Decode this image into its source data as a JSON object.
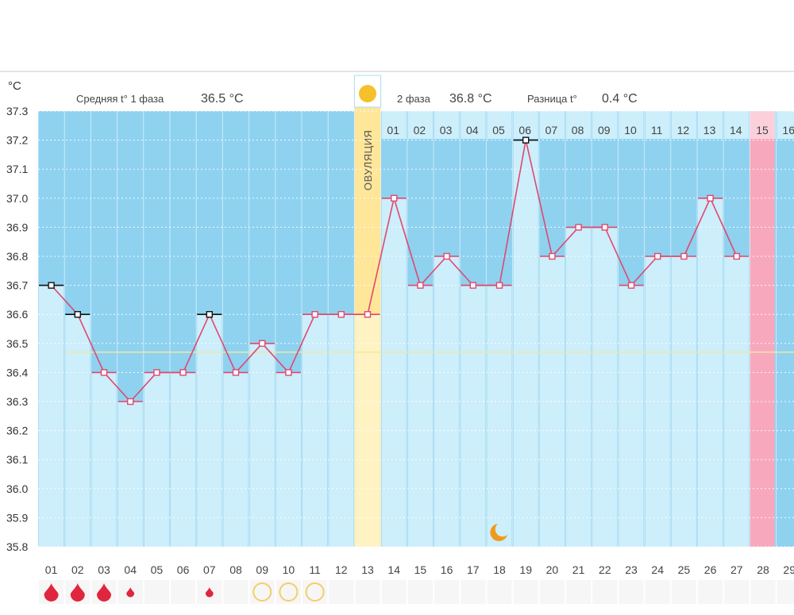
{
  "unit": "°C",
  "header": {
    "phase1_label": "Средняя t° 1 фаза",
    "phase1_value": "36.5 °C",
    "phase2_label": "2 фаза",
    "phase2_value": "36.8 °C",
    "diff_label": "Разница t°",
    "diff_value": "0.4 °C"
  },
  "ovulation_label": "ОВУЛЯЦИЯ",
  "colors": {
    "line": "#e0486f",
    "bg_blue": "#8ed2f0",
    "column_light": "#cdeefb",
    "ovulation": "#ffe699",
    "pink": "#f8a8bd",
    "baseline": "#f2e6a3"
  },
  "chart_data": {
    "type": "line",
    "y_ticks": [
      "37.3",
      "37.2",
      "37.1",
      "37.0",
      "36.9",
      "36.8",
      "36.7",
      "36.6",
      "36.5",
      "36.4",
      "36.3",
      "36.2",
      "36.1",
      "36.0",
      "35.9",
      "35.8"
    ],
    "ylim": [
      35.8,
      37.3
    ],
    "x": [
      "01",
      "02",
      "03",
      "04",
      "05",
      "06",
      "07",
      "08",
      "09",
      "10",
      "11",
      "12",
      "13",
      "14",
      "15",
      "16",
      "17",
      "18",
      "19",
      "20",
      "21",
      "22",
      "23",
      "24",
      "25",
      "26",
      "27",
      "28",
      "29"
    ],
    "phase2_days": [
      "01",
      "02",
      "03",
      "04",
      "05",
      "06",
      "07",
      "08",
      "09",
      "10",
      "11",
      "12",
      "13",
      "14",
      "15",
      "16"
    ],
    "series": [
      {
        "values": [
          36.7,
          36.6,
          36.4,
          36.3,
          36.4,
          36.4,
          36.6,
          36.4,
          36.5,
          36.4,
          36.6,
          36.6,
          36.6,
          37.0,
          36.7,
          36.8,
          36.7,
          36.7,
          37.2,
          36.8,
          36.9,
          36.9,
          36.7,
          36.8,
          36.8,
          37.0,
          36.8,
          null,
          null
        ]
      }
    ],
    "baseline": 36.47,
    "ovulation_day": "13",
    "marked_points": [
      "01",
      "02",
      "07",
      "19"
    ],
    "blood_days": [
      {
        "day": "01",
        "size": "large"
      },
      {
        "day": "02",
        "size": "large"
      },
      {
        "day": "03",
        "size": "large"
      },
      {
        "day": "04",
        "size": "small"
      },
      {
        "day": "07",
        "size": "small"
      }
    ],
    "ring_days": [
      "09",
      "10",
      "11"
    ],
    "moon_day": "18",
    "pink_day": "28"
  }
}
